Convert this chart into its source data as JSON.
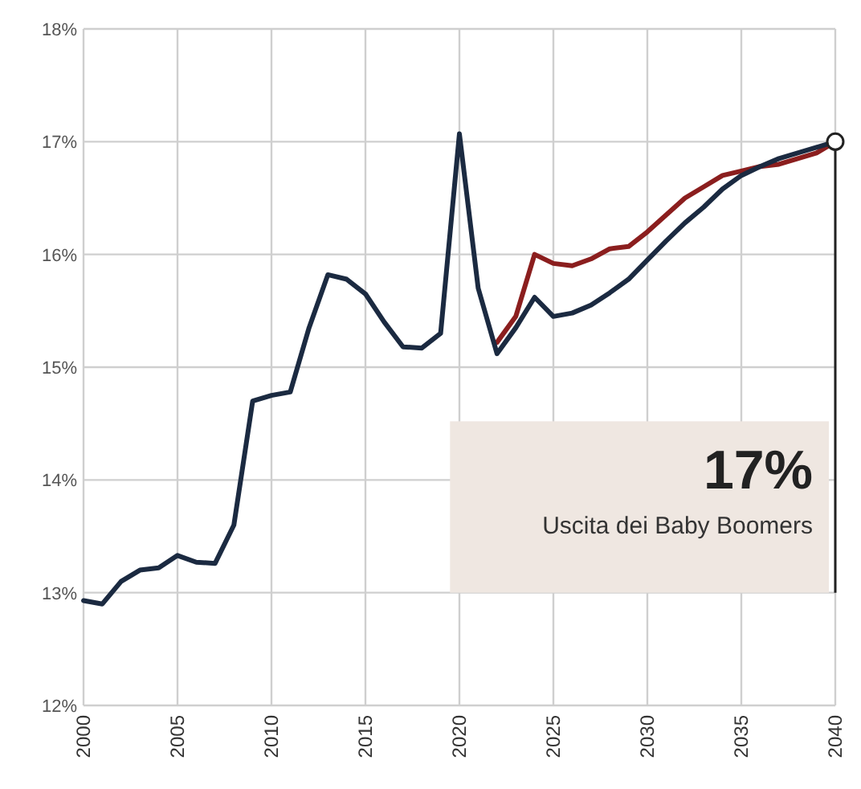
{
  "chart_data": {
    "type": "line",
    "xlim": [
      2000,
      2040
    ],
    "ylim": [
      12,
      18
    ],
    "xticks": [
      2000,
      2005,
      2010,
      2015,
      2020,
      2025,
      2030,
      2035,
      2040
    ],
    "yticks": [
      {
        "value": 12,
        "label": "12%"
      },
      {
        "value": 13,
        "label": "13%"
      },
      {
        "value": 14,
        "label": "14%"
      },
      {
        "value": 15,
        "label": "15%"
      },
      {
        "value": 16,
        "label": "16%"
      },
      {
        "value": 17,
        "label": "17%"
      },
      {
        "value": 18,
        "label": "18%"
      }
    ],
    "grid": true,
    "marker": "none",
    "line_style": "solid",
    "series": [
      {
        "color": "#8b1e1e",
        "x": [
          2022,
          2023,
          2024,
          2025,
          2026,
          2027,
          2028,
          2029,
          2030,
          2031,
          2032,
          2033,
          2034,
          2035,
          2036,
          2037,
          2038,
          2039,
          2040
        ],
        "values": [
          15.22,
          15.45,
          16.0,
          15.92,
          15.9,
          15.96,
          16.05,
          16.07,
          16.2,
          16.35,
          16.5,
          16.6,
          16.7,
          16.74,
          16.78,
          16.8,
          16.85,
          16.9,
          17.0
        ]
      },
      {
        "color": "#1b2a41",
        "x": [
          2000,
          2001,
          2002,
          2003,
          2004,
          2005,
          2006,
          2007,
          2008,
          2009,
          2010,
          2011,
          2012,
          2013,
          2014,
          2015,
          2016,
          2017,
          2018,
          2019,
          2020,
          2021,
          2022,
          2023,
          2024,
          2025,
          2026,
          2027,
          2028,
          2029,
          2030,
          2031,
          2032,
          2033,
          2034,
          2035,
          2036,
          2037,
          2038,
          2039,
          2040
        ],
        "values": [
          12.93,
          12.9,
          13.1,
          13.2,
          13.22,
          13.33,
          13.27,
          13.26,
          13.6,
          14.7,
          14.75,
          14.78,
          15.35,
          15.82,
          15.78,
          15.65,
          15.4,
          15.18,
          15.17,
          15.3,
          17.07,
          15.7,
          15.12,
          15.35,
          15.62,
          15.45,
          15.48,
          15.55,
          15.66,
          15.78,
          15.95,
          16.12,
          16.28,
          16.42,
          16.58,
          16.7,
          16.78,
          16.85,
          16.9,
          16.95,
          17.0
        ]
      }
    ],
    "annotations": [
      "17%",
      "Uscita dei Baby Boomers"
    ]
  }
}
